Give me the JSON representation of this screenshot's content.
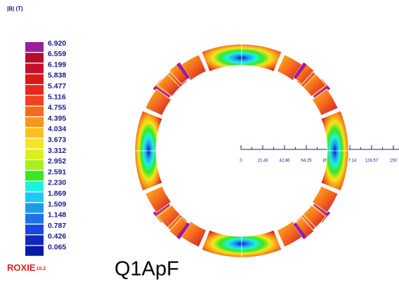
{
  "header": {
    "title": "|B|  (T)"
  },
  "legend": {
    "levels": [
      {
        "value": "6.920",
        "color": "#9b1e9b"
      },
      {
        "value": "6.559",
        "color": "#b0102a"
      },
      {
        "value": "6.199",
        "color": "#c8102e"
      },
      {
        "value": "5.838",
        "color": "#d81a1a"
      },
      {
        "value": "5.477",
        "color": "#e8281e"
      },
      {
        "value": "5.116",
        "color": "#f04020"
      },
      {
        "value": "4.755",
        "color": "#f56a1c"
      },
      {
        "value": "4.395",
        "color": "#f9961a"
      },
      {
        "value": "4.034",
        "color": "#fbc020"
      },
      {
        "value": "3.673",
        "color": "#f5e51e"
      },
      {
        "value": "3.312",
        "color": "#d8f020"
      },
      {
        "value": "2.952",
        "color": "#a6f020"
      },
      {
        "value": "2.591",
        "color": "#38e820"
      },
      {
        "value": "2.230",
        "color": "#20f0e0"
      },
      {
        "value": "1.869",
        "color": "#20c8f0"
      },
      {
        "value": "1.509",
        "color": "#2098f0"
      },
      {
        "value": "1.148",
        "color": "#2070e8"
      },
      {
        "value": "0.787",
        "color": "#1848d8"
      },
      {
        "value": "0.426",
        "color": "#1028c0"
      },
      {
        "value": "0.065",
        "color": "#0818a8"
      }
    ]
  },
  "scale": {
    "ticks": [
      "0",
      "21.43",
      "42.86",
      "64.29",
      "85.71",
      "107.14",
      "128.57",
      "150"
    ]
  },
  "logo": {
    "name": "ROXIE",
    "version": "10.2"
  },
  "label": "Q1ApF"
}
